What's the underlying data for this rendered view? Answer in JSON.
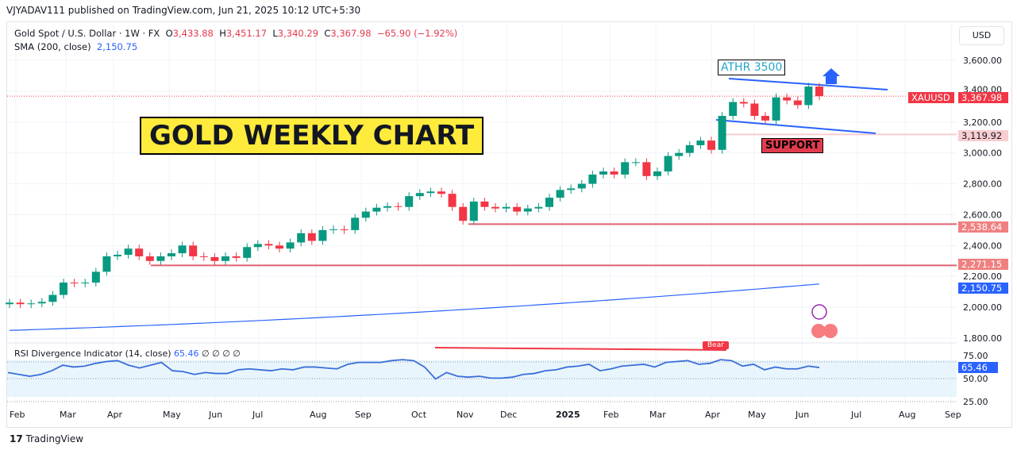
{
  "header": {
    "published": "VJYADAV111 published on TradingView.com, Jun 21, 2025 10:12 UTC+5:30",
    "symbol": "Gold Spot / U.S. Dollar · 1W · FX",
    "o_label": "O",
    "o": "3,433.88",
    "h_label": "H",
    "h": "3,451.17",
    "l_label": "L",
    "l": "3,340.29",
    "c_label": "C",
    "c": "3,367.98",
    "change": "−65.90 (−1.92%)",
    "sma_label": "SMA (200, close)",
    "sma_value": "2,150.75",
    "currency": "USD"
  },
  "annotations": {
    "title": "GOLD WEEKLY CHART",
    "athr": "ATHR 3500",
    "support": "SUPPORT",
    "bear": "Bear"
  },
  "price_tags": {
    "symbol": "XAUUSD",
    "last": "3,367.98",
    "support": "3,119.92",
    "level1": "2,538.64",
    "level2": "2,271.15",
    "sma": "2,150.75",
    "rsi": "65.46"
  },
  "rsi_legend": {
    "label": "RSI Divergence Indicator (14, close)",
    "value": "65.46",
    "extra": "∅ ∅ ∅ ∅"
  },
  "footer": {
    "brand": "TradingView"
  },
  "colors": {
    "up": "#089981",
    "down": "#f23645",
    "sma": "#2962ff",
    "rsi": "#3a6fd8"
  },
  "chart_data": {
    "type": "candlestick",
    "ylim": [
      1800,
      3600
    ],
    "yticks": [
      "3,600.00",
      "3,400.00",
      "3,200.00",
      "3,000.00",
      "2,800.00",
      "2,600.00",
      "2,400.00",
      "2,200.00",
      "2,000.00",
      "1,800.00"
    ],
    "yvals": [
      3600,
      3400,
      3200,
      3000,
      2800,
      2600,
      2400,
      2200,
      2000,
      1800
    ],
    "xticks": [
      "Feb",
      "Mar",
      "Apr",
      "May",
      "Jun",
      "Jul",
      "Aug",
      "Sep",
      "Oct",
      "Nov",
      "Dec",
      "2025",
      "Feb",
      "Mar",
      "Apr",
      "May",
      "Jun",
      "Jul",
      "Aug",
      "Sep"
    ],
    "closes": [
      2030,
      2020,
      2025,
      2035,
      2080,
      2160,
      2155,
      2160,
      2230,
      2330,
      2340,
      2380,
      2330,
      2300,
      2330,
      2350,
      2400,
      2330,
      2325,
      2300,
      2330,
      2320,
      2390,
      2410,
      2400,
      2380,
      2420,
      2480,
      2430,
      2500,
      2505,
      2500,
      2580,
      2620,
      2645,
      2655,
      2650,
      2720,
      2740,
      2750,
      2735,
      2650,
      2560,
      2685,
      2650,
      2640,
      2650,
      2620,
      2640,
      2650,
      2710,
      2760,
      2770,
      2800,
      2860,
      2880,
      2860,
      2940,
      2940,
      2850,
      2880,
      2980,
      3000,
      3050,
      3080,
      3020,
      3240,
      3330,
      3320,
      3240,
      3210,
      3360,
      3340,
      3310,
      3430,
      3368
    ],
    "sma": {
      "start": 1850,
      "end": 2150.75
    },
    "levels": [
      3119.92,
      2538.64,
      2271.15
    ],
    "rsi": {
      "ylim": [
        25,
        75
      ],
      "yticks": [
        "75.00",
        "50.00",
        "25.00"
      ],
      "values": [
        60,
        58,
        56,
        58,
        62,
        68,
        66,
        67,
        70,
        72,
        73,
        68,
        65,
        68,
        71,
        62,
        61,
        58,
        60,
        59,
        59,
        63,
        64,
        63,
        62,
        64,
        63,
        66,
        66,
        65,
        64,
        69,
        71,
        71,
        71,
        73,
        74,
        73,
        66,
        53,
        60,
        56,
        55,
        56,
        54,
        54,
        55,
        58,
        59,
        62,
        63,
        66,
        67,
        69,
        62,
        64,
        67,
        68,
        69,
        66,
        71,
        72,
        73,
        69,
        70,
        74,
        73,
        67,
        69,
        63,
        66,
        64,
        64,
        67,
        65.46
      ]
    }
  }
}
